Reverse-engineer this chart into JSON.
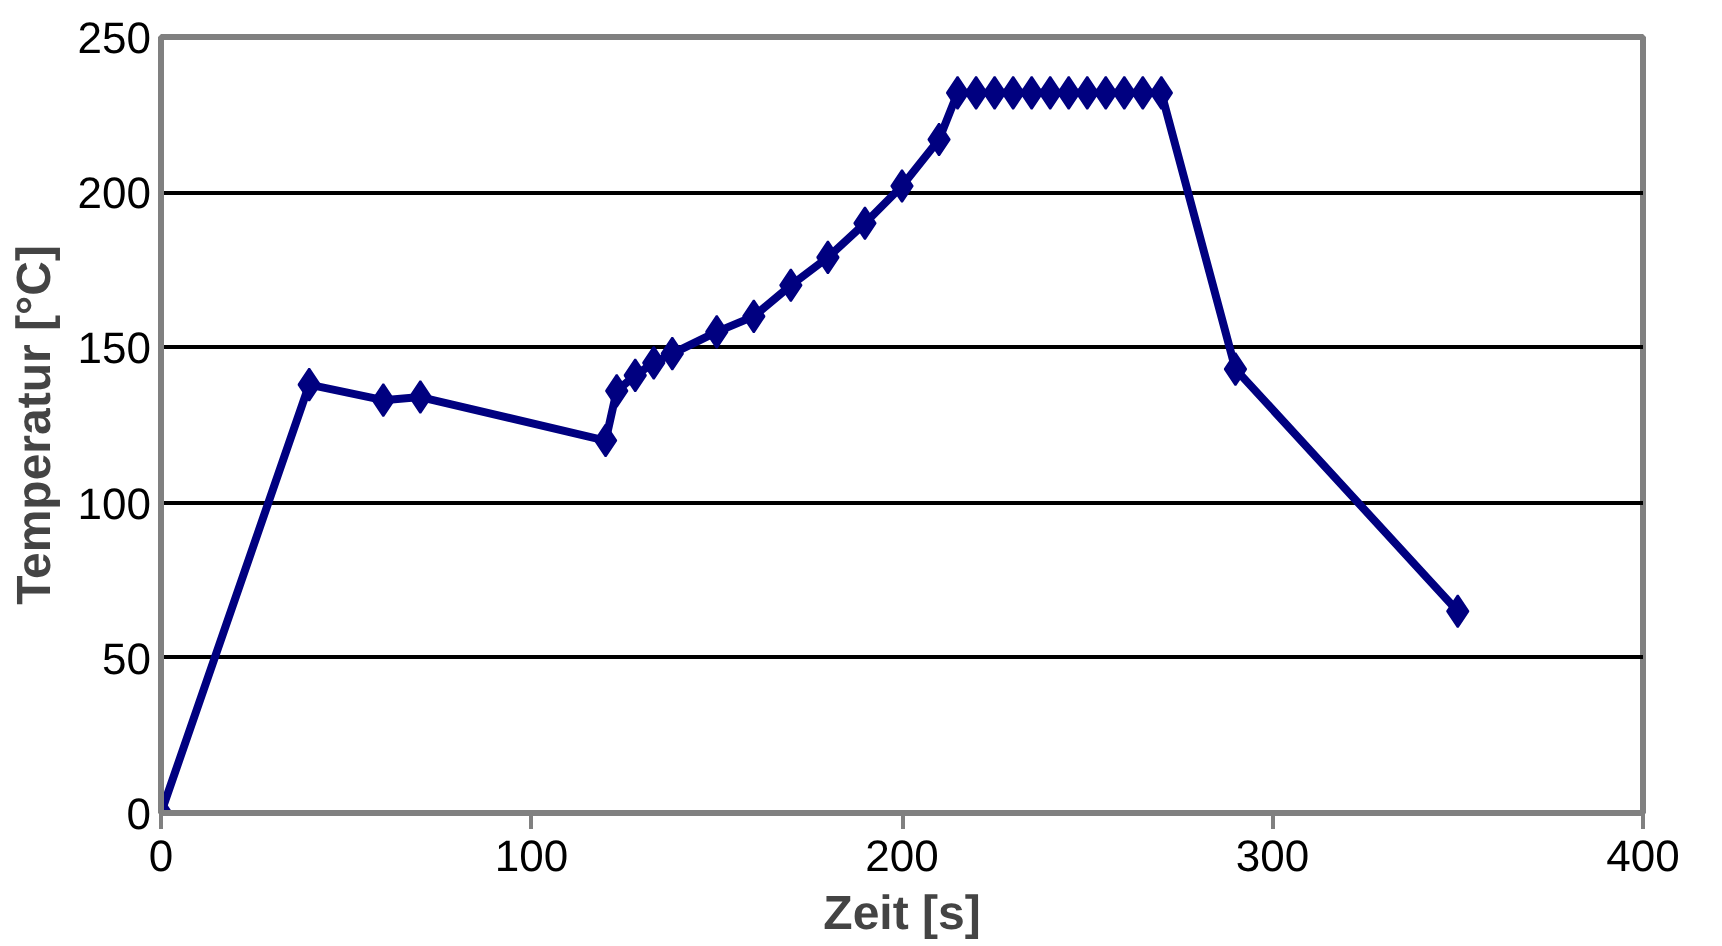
{
  "chart_data": {
    "type": "line",
    "xlabel": "Zeit [s]",
    "ylabel": "Temperatur [°C]",
    "x": [
      0,
      40,
      60,
      70,
      120,
      123,
      128,
      133,
      138,
      150,
      160,
      170,
      180,
      190,
      200,
      210,
      215,
      220,
      225,
      230,
      235,
      240,
      245,
      250,
      255,
      260,
      265,
      270,
      290,
      350
    ],
    "series": [
      {
        "color": "#000080",
        "values": [
          0,
          138,
          133,
          134,
          120,
          136,
          141,
          145,
          148,
          155,
          160,
          170,
          179,
          190,
          202,
          217,
          232,
          232,
          232,
          232,
          232,
          232,
          232,
          232,
          232,
          232,
          232,
          232,
          143,
          65
        ]
      }
    ],
    "xlim": [
      0,
      400
    ],
    "xticks": [
      0,
      100,
      200,
      300,
      400
    ],
    "ylim": [
      0,
      250
    ],
    "yticks": [
      0,
      50,
      100,
      150,
      200,
      250
    ],
    "grid": "y",
    "marker": "diamond",
    "line_style": "solid"
  }
}
